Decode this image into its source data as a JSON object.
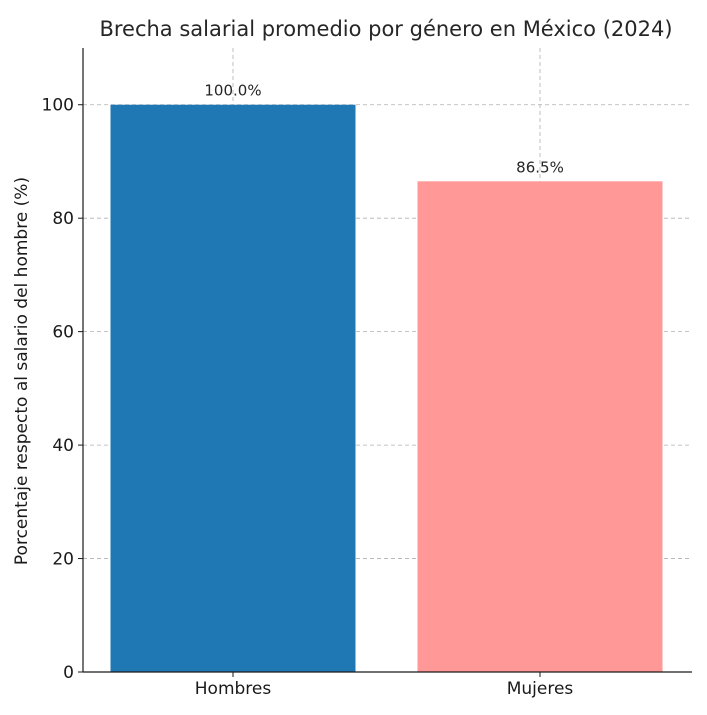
{
  "chart_data": {
    "type": "bar",
    "title": "Brecha salarial promedio por género en México (2024)",
    "xlabel": "",
    "ylabel": "Porcentaje respecto al salario del hombre (%)",
    "categories": [
      "Hombres",
      "Mujeres"
    ],
    "values": [
      100.0,
      86.5
    ],
    "data_labels": [
      "100.0%",
      "86.5%"
    ],
    "colors": [
      "#1f77b4",
      "#ff9896"
    ],
    "ylim": [
      0,
      110
    ],
    "yticks": [
      0,
      20,
      40,
      60,
      80,
      100
    ],
    "grid": true
  }
}
